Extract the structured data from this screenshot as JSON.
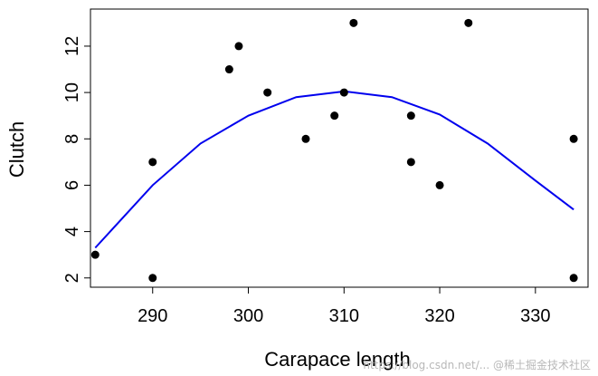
{
  "chart_data": {
    "type": "scatter",
    "xlabel": "Carapace length",
    "ylabel": "Clutch",
    "xlim": [
      283.5,
      335.5
    ],
    "ylim": [
      1.6,
      13.6
    ],
    "xticks": [
      290,
      300,
      310,
      320,
      330
    ],
    "yticks": [
      2,
      4,
      6,
      8,
      10,
      12
    ],
    "grid": false,
    "points_color": "#000000",
    "curve_color": "#0000ee",
    "points": [
      {
        "x": 284,
        "y": 3
      },
      {
        "x": 290,
        "y": 2
      },
      {
        "x": 290,
        "y": 7
      },
      {
        "x": 298,
        "y": 11
      },
      {
        "x": 299,
        "y": 12
      },
      {
        "x": 302,
        "y": 10
      },
      {
        "x": 306,
        "y": 8
      },
      {
        "x": 309,
        "y": 9
      },
      {
        "x": 310,
        "y": 10
      },
      {
        "x": 311,
        "y": 13
      },
      {
        "x": 317,
        "y": 9
      },
      {
        "x": 317,
        "y": 7
      },
      {
        "x": 320,
        "y": 6
      },
      {
        "x": 323,
        "y": 13
      },
      {
        "x": 334,
        "y": 8
      },
      {
        "x": 334,
        "y": 2
      }
    ],
    "fitted_curve": {
      "x": [
        284,
        290,
        295,
        300,
        305,
        310,
        315,
        320,
        325,
        330,
        334
      ],
      "y": [
        3.3,
        6.0,
        7.8,
        9.0,
        9.8,
        10.05,
        9.8,
        9.05,
        7.8,
        6.2,
        4.95
      ]
    }
  },
  "watermark": "https://blog.csdn.net/...  @稀土掘金技术社区"
}
